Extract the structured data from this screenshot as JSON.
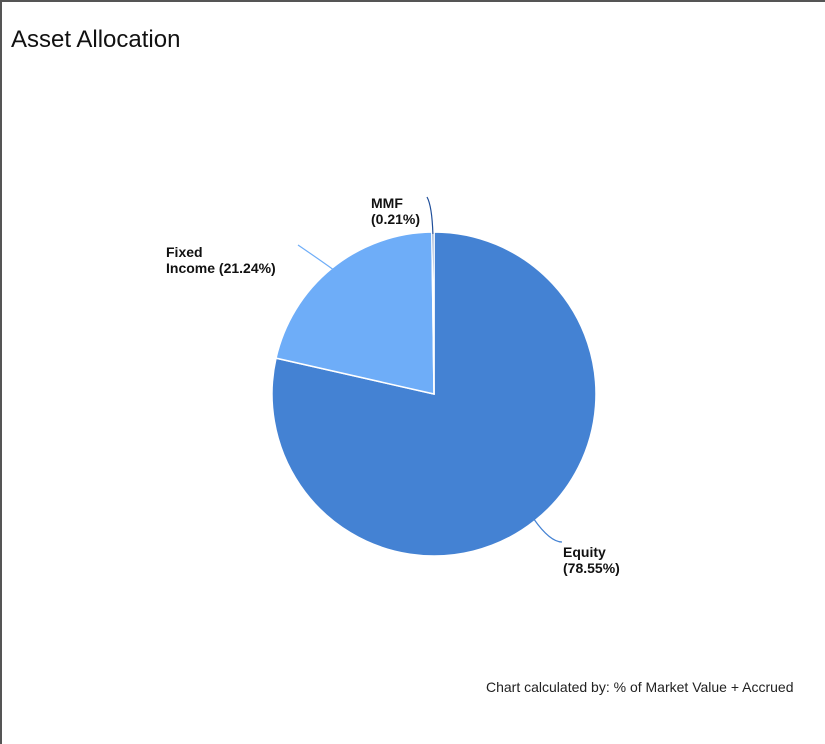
{
  "panel": {
    "title": "Asset Allocation",
    "footnote": "Chart calculated by: % of Market Value + Accrued"
  },
  "chart_data": {
    "type": "pie",
    "title": "Asset Allocation",
    "slices": [
      {
        "name": "Equity",
        "value": 78.55,
        "label": [
          "Equity",
          "(78.55%)"
        ],
        "color": "#4482D3"
      },
      {
        "name": "Fixed Income",
        "value": 21.24,
        "label": [
          "Fixed",
          "Income (21.24%)"
        ],
        "color": "#6EADF8"
      },
      {
        "name": "MMF",
        "value": 0.21,
        "label": [
          "MMF",
          "(0.21%)"
        ],
        "color": "#1F4E9A"
      }
    ]
  }
}
